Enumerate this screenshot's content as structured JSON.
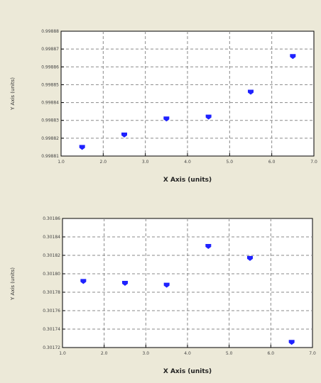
{
  "colors": {
    "background": "#ece9d8",
    "plot_bg": "#ffffff",
    "grid": "#8a8a8a",
    "marker": "#1f22ff"
  },
  "chart_data": [
    {
      "type": "scatter",
      "xlabel": "X Axis (units)",
      "ylabel": "Y Axis (units)",
      "xlim": [
        1.0,
        7.0
      ],
      "ylim": [
        0.99881,
        0.99888
      ],
      "x_ticks": [
        "1.0",
        "2.0",
        "3.0",
        "4.0",
        "5.0",
        "6.0",
        "7.0"
      ],
      "y_ticks": [
        "0.99881",
        "0.99882",
        "0.99883",
        "0.99884",
        "0.99885",
        "0.99886",
        "0.99887",
        "0.99888"
      ],
      "grid": true,
      "series": [
        {
          "x": [
            1.5,
            2.5,
            3.5,
            4.5,
            5.5,
            6.5
          ],
          "y": [
            0.998815,
            0.998822,
            0.998831,
            0.998832,
            0.998846,
            0.998866
          ]
        }
      ]
    },
    {
      "type": "scatter",
      "xlabel": "X Axis (units)",
      "ylabel": "Y Axis (units)",
      "xlim": [
        1.0,
        7.0
      ],
      "ylim": [
        0.30172,
        0.30186
      ],
      "x_ticks": [
        "1.0",
        "2.0",
        "3.0",
        "4.0",
        "5.0",
        "6.0",
        "7.0"
      ],
      "y_ticks": [
        "0.30172",
        "0.30174",
        "0.30176",
        "0.30178",
        "0.30180",
        "0.30182",
        "0.30184",
        "0.30186"
      ],
      "grid": true,
      "series": [
        {
          "x": [
            1.5,
            2.5,
            3.5,
            4.5,
            5.5,
            6.5
          ],
          "y": [
            0.301792,
            0.30179,
            0.301788,
            0.30183,
            0.301817,
            0.301726
          ]
        }
      ]
    }
  ]
}
